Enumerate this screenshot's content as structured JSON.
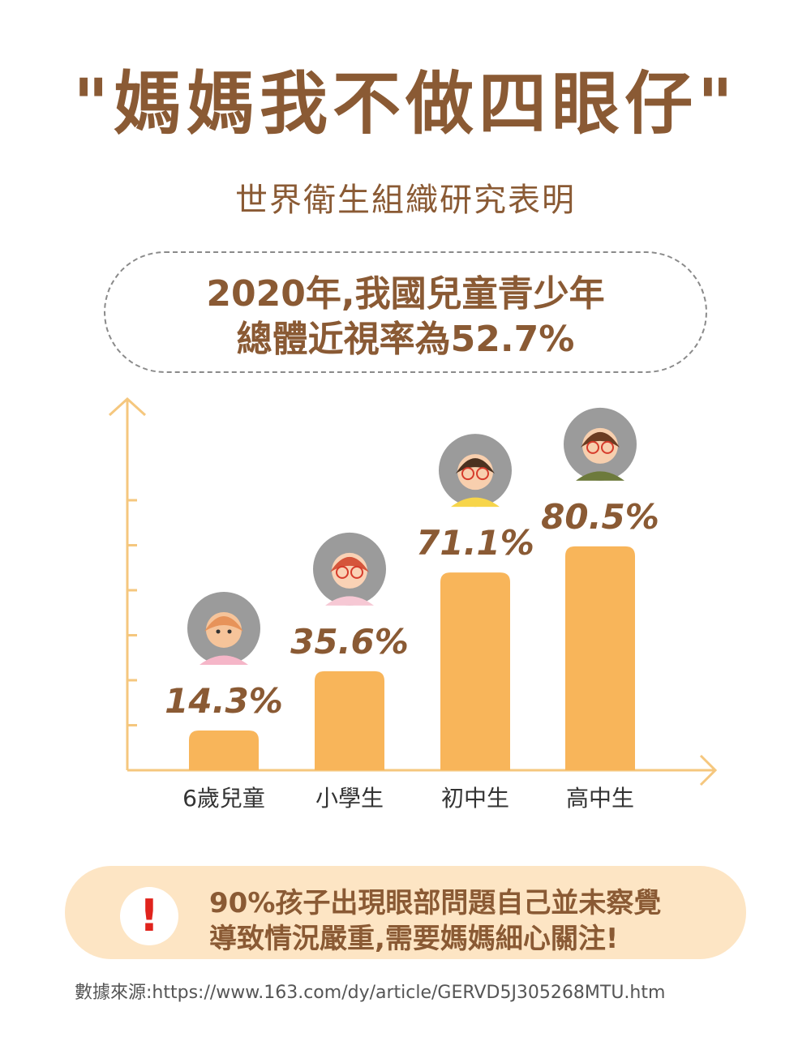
{
  "title": "\"媽媽我不做四眼仔\"",
  "subtitle": "世界衛生組織研究表明",
  "headline": {
    "line1": "2020年,我國兒童青少年",
    "line2": "總體近視率為52.7%"
  },
  "chart_data": {
    "type": "bar",
    "categories": [
      "6歲兒童",
      "小學生",
      "初中生",
      "高中生"
    ],
    "values": [
      14.3,
      35.6,
      71.1,
      80.5
    ],
    "value_labels": [
      "14.3%",
      "35.6%",
      "71.1%",
      "80.5%"
    ],
    "ylim": [
      0,
      100
    ],
    "xlabel": "",
    "ylabel": "",
    "grid": false,
    "bar_color": "#f8b55a",
    "axis_color": "#f5c77e"
  },
  "notice": {
    "icon": "exclamation-icon",
    "icon_glyph": "!",
    "line1": "90%孩子出現眼部問題自己並未察覺",
    "line2": "導致情況嚴重,需要媽媽細心關注!"
  },
  "source": "數據來源:https://www.163.com/dy/article/GERVD5J305268MTU.htm",
  "colors": {
    "text_brown": "#8a5a34",
    "notice_bg": "#fde5c4",
    "alert_red": "#e0231c"
  }
}
